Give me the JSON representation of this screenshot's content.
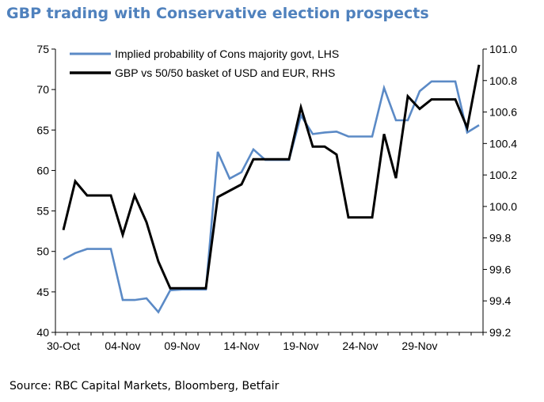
{
  "chart_data": {
    "type": "line",
    "title": "GBP trading with Conservative election prospects",
    "source": "Source: RBC Capital Markets, Bloomberg, Betfair",
    "x_tick_labels": [
      "30-Oct",
      "04-Nov",
      "09-Nov",
      "14-Nov",
      "19-Nov",
      "24-Nov",
      "29-Nov"
    ],
    "x_tick_index": [
      0,
      5,
      10,
      15,
      20,
      25,
      30
    ],
    "y_left": {
      "min": 40,
      "max": 75,
      "ticks": [
        40,
        45,
        50,
        55,
        60,
        65,
        70,
        75
      ]
    },
    "y_right": {
      "min": 99.2,
      "max": 101.0,
      "ticks": [
        "99.2",
        "99.4",
        "99.6",
        "99.8",
        "100.0",
        "100.2",
        "100.4",
        "100.6",
        "100.8",
        "101.0"
      ]
    },
    "legend_placement": "top-left",
    "series": [
      {
        "name": "Implied probability of Cons majority govt, LHS",
        "axis": "left",
        "color": "#5b8ac6",
        "values": [
          49,
          49.8,
          50.3,
          50.3,
          50.3,
          44,
          44,
          44.2,
          42.5,
          45.2,
          45.3,
          45.3,
          45.3,
          62.3,
          59,
          59.8,
          62.6,
          61.3,
          61.3,
          61.3,
          66.8,
          64.5,
          64.7,
          64.8,
          64.2,
          64.2,
          64.2,
          70.2,
          66.2,
          66.2,
          69.8,
          71,
          71,
          71,
          64.7,
          65.6
        ]
      },
      {
        "name": "GBP vs 50/50 basket of USD and EUR, RHS",
        "axis": "right",
        "color": "#000000",
        "values": [
          99.85,
          100.16,
          100.07,
          100.07,
          100.07,
          99.82,
          100.07,
          99.9,
          99.65,
          99.48,
          99.48,
          99.48,
          99.48,
          100.06,
          100.1,
          100.14,
          100.3,
          100.3,
          100.3,
          100.3,
          100.63,
          100.38,
          100.38,
          100.33,
          99.93,
          99.93,
          99.93,
          100.46,
          100.18,
          100.7,
          100.62,
          100.68,
          100.68,
          100.68,
          100.5,
          100.9
        ]
      }
    ]
  }
}
